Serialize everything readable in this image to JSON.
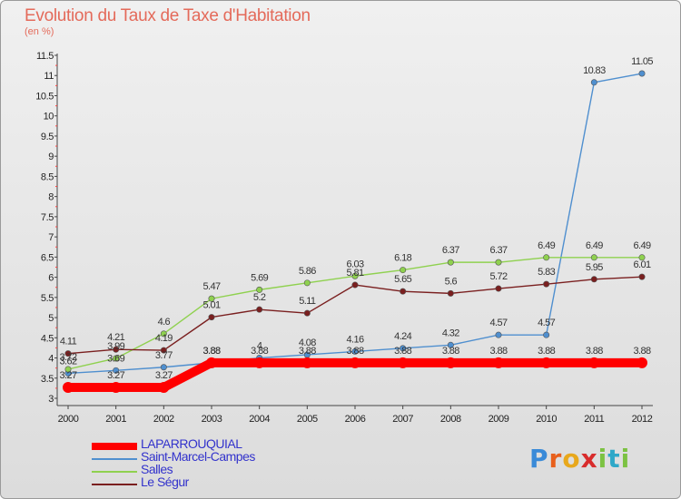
{
  "chart_data": {
    "type": "line",
    "title": "Evolution du Taux de Taxe d'Habitation",
    "subtitle": "(en %)",
    "x": [
      "2000",
      "2001",
      "2002",
      "2003",
      "2004",
      "2005",
      "2006",
      "2007",
      "2008",
      "2009",
      "2010",
      "2011",
      "2012"
    ],
    "ylim": [
      3,
      11.5
    ],
    "yticks": [
      "3",
      "3.5",
      "4",
      "4.5",
      "5",
      "5.5",
      "6",
      "6.5",
      "7",
      "7.5",
      "8",
      "8.5",
      "9",
      "9.5",
      "10",
      "10.5",
      "11",
      "11.5"
    ],
    "grid": false,
    "legend_position": "bottom-left",
    "series": [
      {
        "name": "LAPARROUQUIAL",
        "color": "#ff0000",
        "values": [
          3.27,
          3.27,
          3.27,
          3.88,
          3.88,
          3.88,
          3.88,
          3.88,
          3.88,
          3.88,
          3.88,
          3.88,
          3.88
        ],
        "labels": [
          "3.27",
          "3.27",
          "3.27",
          "3.88",
          "3.88",
          "3.88",
          "3.88",
          "3.88",
          "3.88",
          "3.88",
          "3.88",
          "3.88",
          "3.88"
        ]
      },
      {
        "name": "Saint-Marcel-Campes",
        "color": "#4f8fcf",
        "values": [
          3.62,
          3.69,
          3.77,
          3.88,
          4.0,
          4.08,
          4.16,
          4.24,
          4.32,
          4.57,
          4.57,
          10.83,
          11.05
        ],
        "labels": [
          "3.62",
          "3.69",
          "3.77",
          "3.88",
          "4",
          "4.08",
          "4.16",
          "4.24",
          "4.32",
          "4.57",
          "4.57",
          "10.83",
          "11.05"
        ]
      },
      {
        "name": "Salles",
        "color": "#8fd14f",
        "values": [
          3.72,
          3.99,
          4.6,
          5.47,
          5.69,
          5.86,
          6.03,
          6.18,
          6.37,
          6.37,
          6.49,
          6.49,
          6.49
        ],
        "labels": [
          "3.72",
          "3.99",
          "4.6",
          "5.47",
          "5.69",
          "5.86",
          "6.03",
          "6.18",
          "6.37",
          "6.37",
          "6.49",
          "6.49",
          "6.49"
        ]
      },
      {
        "name": "Le Ségur",
        "color": "#7a1f1f",
        "values": [
          4.11,
          4.21,
          4.19,
          5.01,
          5.2,
          5.11,
          5.81,
          5.65,
          5.6,
          5.72,
          5.83,
          5.95,
          6.01
        ],
        "labels": [
          "4.11",
          "4.21",
          "4.19",
          "5.01",
          "5.2",
          "5.11",
          "5.81",
          "5.65",
          "5.6",
          "5.72",
          "5.83",
          "5.95",
          "6.01"
        ]
      }
    ]
  },
  "branding": {
    "logo_text": "Proxiti"
  }
}
